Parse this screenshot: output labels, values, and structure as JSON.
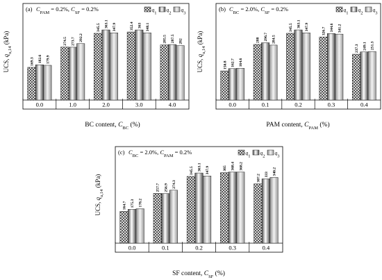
{
  "colors": {
    "frame": "#000000",
    "bar_stroke": "#1a1a1a",
    "bar_light": "#ffffff",
    "bar_mid": "#b0b0b0",
    "bar_dark": "#505050"
  },
  "chart_data": [
    {
      "type": "bar",
      "panel": "(a)",
      "condition": "C_PAM = 0.2%, C_SF = 0.2%",
      "cond_parts": [
        {
          "t": "C",
          "sub": "PAM",
          "rest": " = 0.2%, "
        },
        {
          "t": "C",
          "sub": "SF",
          "rest": " = 0.2%"
        }
      ],
      "xlabel_main": "BC content, ",
      "xlabel_sym": "C",
      "xlabel_sub": "BC",
      "xlabel_unit": " (%)",
      "ylabel_main": "UCS, ",
      "ylabel_sym": "q",
      "ylabel_sub": "u,14",
      "ylabel_unit": " (kPa)",
      "categories": [
        "0.0",
        "1.0",
        "2.0",
        "3.0",
        "4.0"
      ],
      "series": [
        {
          "name": "q1",
          "sym": "q",
          "sub": "1",
          "values": [
            169.3,
            274.5,
            345.5,
            352.4,
            285.5
          ],
          "labels": [
            "169.3",
            "274.5",
            "345.5",
            "352.4",
            "285.5"
          ]
        },
        {
          "name": "q2",
          "sym": "q",
          "sub": "2",
          "values": [
            182.6,
            273.7,
            363.1,
            363,
            287.5
          ],
          "labels": [
            "182.6",
            "273.7",
            "363.1",
            "363",
            "287.5"
          ]
        },
        {
          "name": "q3",
          "sym": "q",
          "sub": "3",
          "values": [
            179.9,
            292.2,
            347.9,
            348.1,
            282
          ],
          "labels": [
            "179.9",
            "292.2",
            "347.9",
            "348.1",
            "282"
          ]
        }
      ],
      "ylim": [
        0,
        500
      ],
      "legend": "top-right",
      "grid": false
    },
    {
      "type": "bar",
      "panel": "(b)",
      "condition": "C_BC = 2.0%, C_SF = 0.2%",
      "cond_parts": [
        {
          "t": "C",
          "sub": "BC",
          "rest": " = 2.0%, "
        },
        {
          "t": "C",
          "sub": "SF",
          "rest": " = 0.2%"
        }
      ],
      "xlabel_main": "PAM content, ",
      "xlabel_sym": "C",
      "xlabel_sub": "PAM",
      "xlabel_unit": " (%)",
      "ylabel_main": "UCS, ",
      "ylabel_sym": "q",
      "ylabel_sub": "u,14",
      "ylabel_unit": " (kPa)",
      "categories": [
        "0.0",
        "0.1",
        "0.2",
        "0.3",
        "0.4"
      ],
      "series": [
        {
          "name": "q1",
          "sym": "q",
          "sub": "1",
          "values": [
            150.8,
            288,
            345.5,
            326.7,
            237.3
          ],
          "labels": [
            "150.8",
            "288",
            "345.5",
            "326.7",
            "237.3"
          ]
        },
        {
          "name": "q2",
          "sym": "q",
          "sub": "2",
          "values": [
            162.7,
            296.7,
            363.1,
            344.6,
            249.1
          ],
          "labels": [
            "162.7",
            "296.7",
            "363.1",
            "344.6",
            "249.1"
          ]
        },
        {
          "name": "q3",
          "sym": "q",
          "sub": "3",
          "values": [
            164.6,
            284.5,
            347.9,
            341.2,
            251.3
          ],
          "labels": [
            "164.6",
            "284.5",
            "347.9",
            "341.2",
            "251.3"
          ]
        }
      ],
      "ylim": [
        0,
        500
      ],
      "legend": "top-right",
      "grid": false
    },
    {
      "type": "bar",
      "panel": "(c)",
      "condition": "C_BC = 2.0%, C_PAM = 0.2%",
      "cond_parts": [
        {
          "t": "C",
          "sub": "BC",
          "rest": " = 2.0%, "
        },
        {
          "t": "C",
          "sub": "PAM",
          "rest": " = 0.2%"
        }
      ],
      "xlabel_main": "SF content, ",
      "xlabel_sym": "C",
      "xlabel_sub": "SF",
      "xlabel_unit": " (%)",
      "ylabel_main": "UCS, ",
      "ylabel_sym": "q",
      "ylabel_sub": "u,14",
      "ylabel_unit": " (kPa)",
      "categories": [
        "0.0",
        "0.1",
        "0.2",
        "0.3",
        "0.4"
      ],
      "series": [
        {
          "name": "q1",
          "sym": "q",
          "sub": "1",
          "values": [
            164.7,
            257.7,
            345.5,
            365,
            307.2
          ],
          "labels": [
            "164.7",
            "257.7",
            "345.5",
            "365",
            "307.2"
          ]
        },
        {
          "name": "q2",
          "sym": "q",
          "sub": "2",
          "values": [
            175.3,
            256.9,
            363.1,
            368.4,
            333
          ],
          "labels": [
            "175.3",
            "256.9",
            "363.1",
            "368.4",
            "333"
          ]
        },
        {
          "name": "q3",
          "sym": "q",
          "sub": "3",
          "values": [
            178.2,
            274.3,
            347.9,
            368.2,
            340.2
          ],
          "labels": [
            "178.2",
            "274.3",
            "347.9",
            "368.2",
            "340.2"
          ]
        }
      ],
      "ylim": [
        0,
        500
      ],
      "legend": "top-right",
      "grid": false
    }
  ]
}
